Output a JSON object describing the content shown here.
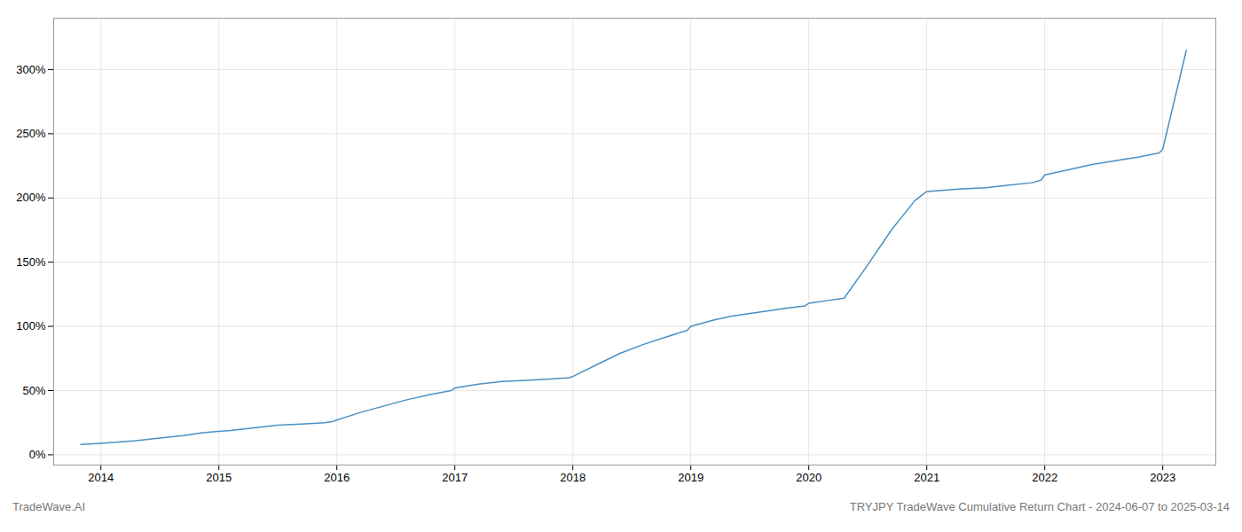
{
  "chart_data": {
    "type": "line",
    "title": "TRYJPY TradeWave Cumulative Return Chart - 2024-06-07 to 2025-03-14",
    "annotations": [
      "TradeWave.AI"
    ],
    "color": "#4a90c4",
    "grid": true,
    "x": [
      2013.83,
      2014.0,
      2014.15,
      2014.3,
      2014.5,
      2014.7,
      2014.85,
      2014.97,
      2015.1,
      2015.3,
      2015.5,
      2015.7,
      2015.9,
      2015.97,
      2016.0,
      2016.2,
      2016.4,
      2016.6,
      2016.8,
      2016.97,
      2017.0,
      2017.2,
      2017.4,
      2017.6,
      2017.8,
      2017.97,
      2018.0,
      2018.2,
      2018.4,
      2018.6,
      2018.8,
      2018.97,
      2019.0,
      2019.2,
      2019.35,
      2019.5,
      2019.65,
      2019.8,
      2019.97,
      2020.0,
      2020.08,
      2020.15,
      2020.22,
      2020.3,
      2020.5,
      2020.7,
      2020.9,
      2020.97,
      2021.0,
      2021.15,
      2021.3,
      2021.5,
      2021.7,
      2021.9,
      2021.97,
      2022.0,
      2022.2,
      2022.4,
      2022.6,
      2022.8,
      2022.97,
      2023.0,
      2023.2
    ],
    "values": [
      8,
      9,
      10,
      11,
      13,
      15,
      17,
      18,
      19,
      21,
      23,
      24,
      25,
      26,
      27,
      33,
      38,
      43,
      47,
      50,
      52,
      55,
      57,
      58,
      59,
      60,
      61,
      70,
      79,
      86,
      92,
      97,
      100,
      105,
      108,
      110,
      112,
      114,
      116,
      118,
      119,
      120,
      121,
      122,
      148,
      175,
      198,
      203,
      205,
      206,
      207,
      208,
      210,
      212,
      214,
      218,
      222,
      226,
      229,
      232,
      235,
      238,
      315
    ],
    "xlim": [
      2013.6,
      2023.45
    ],
    "ylim": [
      -8,
      340
    ],
    "xticks": [
      2014,
      2015,
      2016,
      2017,
      2018,
      2019,
      2020,
      2021,
      2022,
      2023
    ],
    "yticks": [
      {
        "value": 0,
        "label": "0%"
      },
      {
        "value": 50,
        "label": "50%"
      },
      {
        "value": 100,
        "label": "100%"
      },
      {
        "value": 150,
        "label": "150%"
      },
      {
        "value": 200,
        "label": "200%"
      },
      {
        "value": 250,
        "label": "250%"
      },
      {
        "value": 300,
        "label": "300%"
      }
    ]
  }
}
